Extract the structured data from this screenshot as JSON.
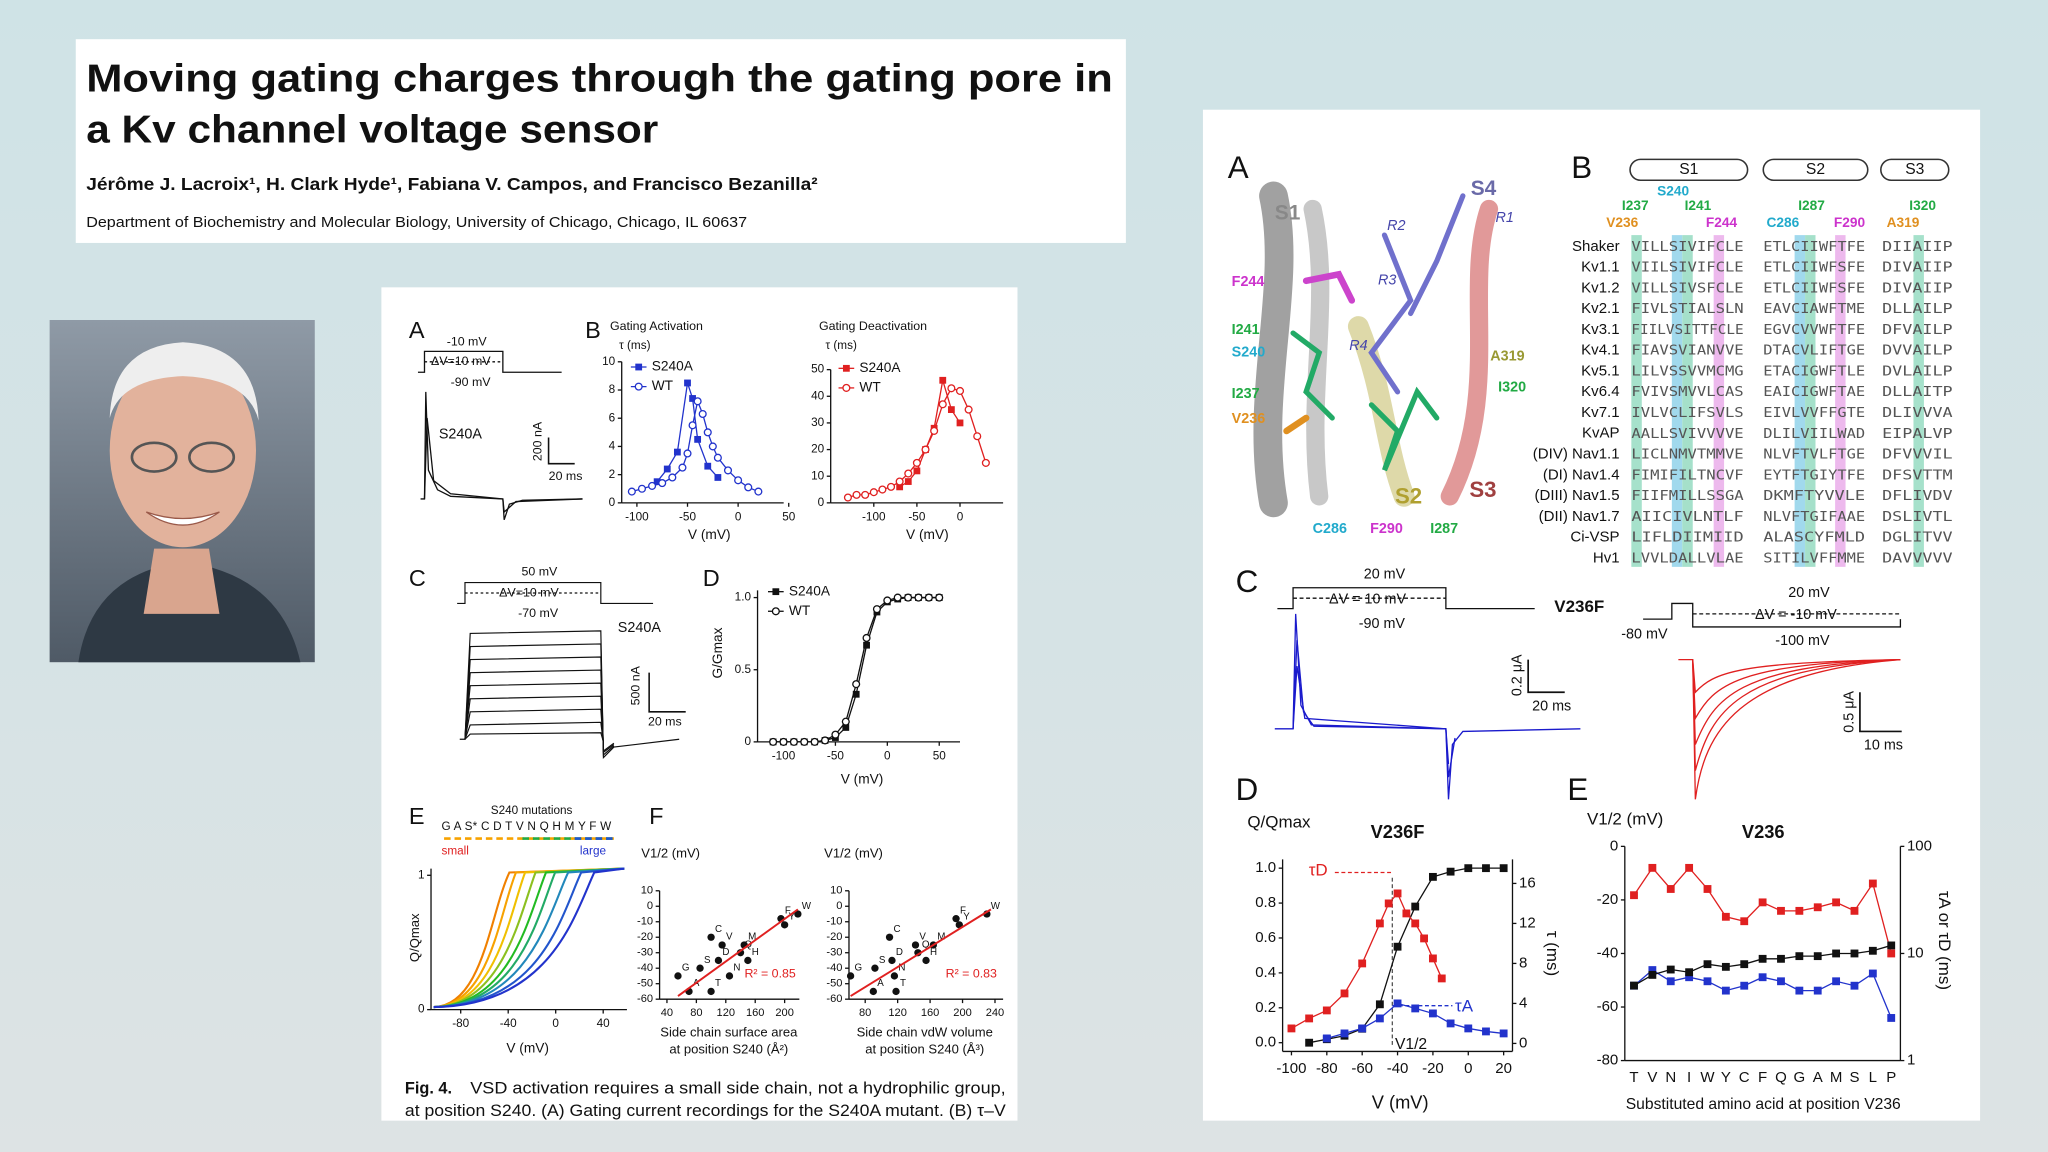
{
  "header": {
    "title": [
      "Moving gating charges through the gating pore in",
      "a Kv channel voltage sensor"
    ],
    "authors": "Jérôme J. Lacroix¹, H. Clark Hyde¹, Fabiana V. Campos, and Francisco Bezanilla²",
    "affiliation": "Department of Biochemistry and Molecular Biology, University of Chicago, Chicago, IL 60637"
  },
  "left_figure": {
    "letters": [
      "A",
      "B",
      "C",
      "D",
      "E",
      "F"
    ],
    "A": {
      "texts": [
        "-10 mV",
        "ΔV=10 mV",
        "-90 mV",
        "S240A",
        "200 nA",
        "20 ms"
      ]
    },
    "B_activation": {
      "title": "Gating Activation",
      "ylabel": "τ (ms)",
      "xlabel": "V (mV)",
      "xlim": [
        -115,
        45
      ],
      "xticks": [
        -100,
        -50,
        0,
        50
      ],
      "ylim": [
        0,
        10
      ],
      "yticks": [
        0,
        2,
        4,
        6,
        8,
        10
      ],
      "series": [
        {
          "name": "S240A",
          "color": "#2233cc",
          "marker": "square",
          "line": true,
          "x": [
            -80,
            -70,
            -60,
            -50,
            -45,
            -40,
            -30,
            -20
          ],
          "values": [
            1.5,
            2.4,
            3.6,
            8.5,
            7.4,
            4.5,
            2.6,
            1.8
          ]
        },
        {
          "name": "WT",
          "color": "#2233cc",
          "marker": "circle-open",
          "line": true,
          "x": [
            -105,
            -95,
            -85,
            -75,
            -65,
            -55,
            -50,
            -45,
            -40,
            -35,
            -30,
            -25,
            -20,
            -10,
            0,
            10,
            20
          ],
          "values": [
            0.8,
            1.0,
            1.2,
            1.4,
            1.8,
            2.5,
            3.5,
            5.5,
            7.2,
            6.3,
            5.0,
            4.0,
            3.2,
            2.3,
            1.6,
            1.1,
            0.8
          ]
        }
      ]
    },
    "B_deactivation": {
      "title": "Gating Deactivation",
      "ylabel": "τ (ms)",
      "xlabel": "V (mV)",
      "xlim": [
        -150,
        50
      ],
      "xticks": [
        -100,
        -50,
        0
      ],
      "ylim": [
        0,
        50
      ],
      "yticks": [
        0,
        10,
        20,
        30,
        40,
        50
      ],
      "series": [
        {
          "name": "S240A",
          "color": "#e02020",
          "marker": "square",
          "line": true,
          "x": [
            -70,
            -60,
            -50,
            -40,
            -30,
            -20,
            -10,
            0
          ],
          "values": [
            6,
            8,
            12,
            20,
            28,
            46,
            35,
            30
          ]
        },
        {
          "name": "WT",
          "color": "#e02020",
          "marker": "circle-open",
          "line": true,
          "x": [
            -130,
            -120,
            -110,
            -100,
            -90,
            -80,
            -70,
            -60,
            -50,
            -40,
            -30,
            -20,
            -10,
            0,
            10,
            20,
            30
          ],
          "values": [
            2,
            3,
            3,
            4,
            5,
            6,
            8,
            11,
            15,
            20,
            27,
            37,
            43,
            42,
            35,
            25,
            15
          ]
        }
      ]
    },
    "C": {
      "texts": [
        "50 mV",
        "ΔV=10 mV",
        "-70 mV",
        "S240A",
        "500 nA",
        "20 ms"
      ]
    },
    "D": {
      "ylabel": "G/Gmax",
      "xlabel": "V (mV)",
      "xlim": [
        -125,
        70
      ],
      "xticks": [
        -100,
        -50,
        0,
        50
      ],
      "ylim": [
        0,
        1.05
      ],
      "yticks": [
        0,
        0.5,
        {
          "value": 1,
          "label": "1.0"
        }
      ],
      "series": [
        {
          "name": "S240A",
          "color": "#111111",
          "marker": "square",
          "line": true,
          "x": [
            -110,
            -100,
            -90,
            -80,
            -70,
            -60,
            -50,
            -40,
            -30,
            -20,
            -10,
            0,
            10,
            20,
            30,
            40,
            50
          ],
          "values": [
            0,
            0,
            0,
            0,
            0,
            0.01,
            0.03,
            0.1,
            0.33,
            0.67,
            0.9,
            0.97,
            0.99,
            1,
            1,
            1,
            1
          ]
        },
        {
          "name": "WT",
          "color": "#111111",
          "marker": "circle-open",
          "line": true,
          "x": [
            -110,
            -100,
            -90,
            -80,
            -70,
            -60,
            -50,
            -40,
            -30,
            -20,
            -10,
            0,
            10,
            20,
            30,
            40,
            50
          ],
          "values": [
            0,
            0,
            0,
            0,
            0,
            0.01,
            0.05,
            0.14,
            0.4,
            0.72,
            0.92,
            0.98,
            1,
            1,
            1,
            1,
            1
          ]
        }
      ]
    },
    "E": {
      "title": "S240 mutations",
      "letters": "G A S* C D T V N Q H M Y F W",
      "small": "small",
      "large": "large",
      "ylabel": "Q/Qmax",
      "xlabel": "V (mV)",
      "xlim": [
        -105,
        60
      ],
      "xticks": [
        -80,
        -40,
        0,
        40
      ],
      "ylim": [
        0,
        1.05
      ],
      "yticks": [
        0,
        1
      ]
    },
    "F_area": {
      "ylabel": "V1/2 (mV)",
      "xlabel": [
        "Side chain surface area",
        "at position S240 (Å²)"
      ],
      "r2": "R² = 0.85",
      "xlim": [
        30,
        220
      ],
      "xticks": [
        40,
        80,
        120,
        160,
        200
      ],
      "ylim": [
        -60,
        10
      ],
      "yticks": [
        10,
        0,
        -10,
        -20,
        -30,
        -40,
        -50,
        -60
      ],
      "series": [
        {
          "color": "#111111",
          "marker": "circle",
          "labels": [
            "G",
            "A",
            "S",
            "C",
            "T",
            "D",
            "V",
            "N",
            "Q",
            "H",
            "M",
            "F",
            "Y",
            "W"
          ],
          "x": [
            55,
            70,
            85,
            100,
            100,
            110,
            115,
            125,
            140,
            150,
            145,
            195,
            200,
            218
          ],
          "values": [
            -45,
            -55,
            -40,
            -20,
            -55,
            -35,
            -25,
            -45,
            -30,
            -35,
            -25,
            -8,
            -12,
            -5
          ]
        },
        {
          "color": "#e02020",
          "line": true,
          "x": [
            55,
            218
          ],
          "values": [
            -58,
            -2
          ]
        }
      ]
    },
    "F_volume": {
      "ylabel": "V1/2 (mV)",
      "xlabel": [
        "Side chain vdW volume",
        "at position S240 (Å³)"
      ],
      "r2": "R² = 0.83",
      "xlim": [
        60,
        250
      ],
      "xticks": [
        80,
        120,
        160,
        200,
        240
      ],
      "ylim": [
        -60,
        10
      ],
      "yticks": [
        10,
        0,
        -10,
        -20,
        -30,
        -40,
        -50,
        -60
      ],
      "series": [
        {
          "color": "#111111",
          "marker": "circle",
          "labels": [
            "G",
            "A",
            "S",
            "C",
            "T",
            "D",
            "V",
            "N",
            "Q",
            "H",
            "M",
            "F",
            "Y",
            "W"
          ],
          "x": [
            62,
            90,
            92,
            110,
            118,
            113,
            142,
            116,
            145,
            155,
            164,
            192,
            196,
            230
          ],
          "values": [
            -45,
            -55,
            -40,
            -20,
            -55,
            -35,
            -25,
            -45,
            -30,
            -35,
            -25,
            -8,
            -12,
            -5
          ]
        },
        {
          "color": "#e02020",
          "line": true,
          "x": [
            62,
            235
          ],
          "values": [
            -58,
            -2
          ]
        }
      ]
    },
    "caption": {
      "label": "Fig. 4.",
      "lines": [
        "VSD activation requires a small side chain, not a hydrophilic group,",
        "at position S240. (A) Gating current recordings for the S240A mutant. (B) τ–V"
      ]
    }
  },
  "right_figure": {
    "letters": [
      "A",
      "B",
      "C",
      "D",
      "E"
    ],
    "A": {
      "labels": [
        "S1",
        "S4",
        "R1",
        "R2",
        "R3",
        "R4",
        "F244",
        "I241",
        "S240",
        "I237",
        "V236",
        "A319",
        "I320",
        "C286",
        "F290",
        "I287",
        "S2",
        "S3"
      ]
    },
    "alignment": {
      "segments": [
        "S1",
        "S2",
        "S3"
      ],
      "residues": [
        "S240",
        "I237",
        "I241",
        "F244",
        "V236",
        "C286",
        "I287",
        "F290",
        "I320",
        "A319"
      ],
      "rows": [
        {
          "name": "Shaker",
          "seq": [
            "VILLSIVIFCLE",
            "ETLCIIWFTFE",
            "DIIAIIP"
          ]
        },
        {
          "name": "Kv1.1",
          "seq": [
            "VIILSIVIFCLE",
            "ETLCIIWFSFE",
            "DIVAIIP"
          ]
        },
        {
          "name": "Kv1.2",
          "seq": [
            "VILLSIVSFCLE",
            "ETLCIIWFSFE",
            "DIVAIIP"
          ]
        },
        {
          "name": "Kv2.1",
          "seq": [
            "FIVLSTIALSLN",
            "EAVCIAWFTME",
            "DLLAILP"
          ]
        },
        {
          "name": "Kv3.1",
          "seq": [
            "FIILVSITTFCLE",
            "EGVCVVWFTFE",
            "DFVAILP"
          ]
        },
        {
          "name": "Kv4.1",
          "seq": [
            "FIAVSVIANVVE",
            "DTACVLIFTGE",
            "DVVAILP"
          ]
        },
        {
          "name": "Kv5.1",
          "seq": [
            "LILVSSVVMCMG",
            "ETACIGWFTLE",
            "DVLAILP"
          ]
        },
        {
          "name": "Kv6.4",
          "seq": [
            "FVIVSMVVLCAS",
            "EAICIGWFTAE",
            "DLLAITP"
          ]
        },
        {
          "name": "Kv7.1",
          "seq": [
            "IVLVCLIFSVLS",
            "EIVLVVFFGTE",
            "DLIVVVA"
          ]
        },
        {
          "name": "KvAP",
          "seq": [
            "AALLSVIVVVVE",
            "DLILVIILWAD",
            "EIPALVP"
          ]
        },
        {
          "name": "(DIV) Nav1.1",
          "seq": [
            "LICLNMVTMMVE",
            "NLVFTVLFTGE",
            "DFVVVIL"
          ]
        },
        {
          "name": "(DI) Nav1.4",
          "seq": [
            "FIMIFILTNCVF",
            "EYTFTGIYTFE",
            "DFSVTTM"
          ]
        },
        {
          "name": "(DIII) Nav1.5",
          "seq": [
            "FIIFMILLSSGA",
            "DKMFTYVVLE",
            "DFLIVDV"
          ]
        },
        {
          "name": "(DII) Nav1.7",
          "seq": [
            "AIICIVLNTLF",
            "NLVFTGIFAAE",
            "DSLIVTL"
          ]
        },
        {
          "name": "Ci-VSP",
          "seq": [
            "LIFLDIIMIID",
            "ALASCYFMLD",
            "DGLITVV"
          ]
        },
        {
          "name": "Hv1",
          "seq": [
            "LVVLDALLVLAE",
            "SITILVFFMME",
            "DAVVVVV"
          ]
        }
      ]
    },
    "C": {
      "texts": [
        "20 mV",
        "ΔV = 10 mV",
        "-90 mV",
        "V236F",
        "0.2 μA",
        "20 ms",
        "20 mV",
        "ΔV = -10 mV",
        "-80 mV",
        "-100 mV",
        "0.5 μA",
        "10 ms"
      ]
    },
    "D": {
      "ylabel": "Q/Qmax",
      "title": "V236F",
      "xlabel": "V (mV)",
      "y2label": "τ (ms)",
      "annotations": [
        "τD",
        "τA",
        "V1/2"
      ],
      "xlim": [
        -105,
        25
      ],
      "xticks": [
        -100,
        -80,
        -60,
        -40,
        -20,
        0,
        20
      ],
      "ylim": [
        -0.05,
        1.05
      ],
      "yticks": [
        {
          "value": 0,
          "label": "0.0"
        },
        0.2,
        0.4,
        0.6,
        0.8,
        {
          "value": 1,
          "label": "1.0"
        }
      ],
      "y2lim": [
        -0.8,
        18.4
      ],
      "y2ticks": [
        0,
        4,
        8,
        12,
        16
      ],
      "series": [
        {
          "color": "#111111",
          "marker": "square",
          "line": true,
          "x": [
            -90,
            -80,
            -70,
            -60,
            -50,
            -40,
            -30,
            -20,
            -10,
            0,
            10,
            20
          ],
          "values": [
            0,
            0.02,
            0.04,
            0.08,
            0.22,
            0.55,
            0.78,
            0.95,
            0.98,
            1,
            1,
            1
          ]
        },
        {
          "name": "τD",
          "axis": "y2",
          "color": "#e02020",
          "marker": "square",
          "line": true,
          "x": [
            -100,
            -90,
            -80,
            -70,
            -60,
            -50,
            -45,
            -40,
            -35,
            -30,
            -25,
            -20,
            -15
          ],
          "values": [
            1.5,
            2.5,
            3.3,
            5,
            8,
            12,
            14,
            15,
            13,
            12,
            10.5,
            8.5,
            6.5
          ]
        },
        {
          "name": "τA",
          "axis": "y2",
          "color": "#2233cc",
          "marker": "square",
          "line": true,
          "x": [
            -80,
            -70,
            -60,
            -50,
            -40,
            -30,
            -20,
            -10,
            0,
            10,
            20
          ],
          "values": [
            0.5,
            1,
            1.5,
            2.5,
            4,
            3.5,
            3,
            2,
            1.5,
            1.2,
            1
          ]
        }
      ]
    },
    "E": {
      "ylabel": "V1/2 (mV)",
      "title": "V236",
      "xlabel": "Substituted amino acid at position V236",
      "y2label": "τA or τD (ms)",
      "categories": [
        "T",
        "V",
        "N",
        "I",
        "W",
        "Y",
        "C",
        "F",
        "Q",
        "G",
        "A",
        "M",
        "S",
        "L",
        "P"
      ],
      "ylim": [
        -80,
        0
      ],
      "yticks": [
        0,
        -20,
        -40,
        -60,
        -80
      ],
      "y2lim": [
        1,
        100
      ],
      "y2log": true,
      "y2ticks": [
        1,
        10,
        100
      ],
      "series": [
        {
          "axis": "y2",
          "color": "#e02020",
          "marker": "square",
          "line": true,
          "values": [
            35,
            63,
            40,
            63,
            40,
            22,
            20,
            30,
            25,
            25,
            27,
            30,
            25,
            45,
            10
          ]
        },
        {
          "axis": "y2",
          "color": "#2233cc",
          "marker": "square",
          "line": true,
          "values": [
            5,
            7,
            5.5,
            6,
            5.5,
            4.5,
            5,
            6,
            5.5,
            4.5,
            4.5,
            5.5,
            5,
            6.5,
            2.5
          ]
        },
        {
          "color": "#111111",
          "marker": "square",
          "line": true,
          "values": [
            -52,
            -48,
            -46,
            -47,
            -44,
            -45,
            -44,
            -42,
            -42,
            -41,
            -41,
            -40,
            -40,
            -39,
            -37
          ]
        }
      ]
    }
  }
}
